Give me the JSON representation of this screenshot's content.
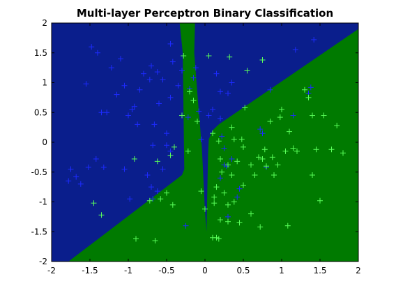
{
  "chart_data": {
    "type": "scatter",
    "title": "Multi-layer Perceptron Binary Classification",
    "xlabel": "",
    "ylabel": "",
    "xlim": [
      -2,
      2
    ],
    "ylim": [
      -2,
      2
    ],
    "xticks": [
      -2,
      -1.5,
      -1,
      -0.5,
      0,
      0.5,
      1,
      1.5,
      2
    ],
    "yticks": [
      -2,
      -1.5,
      -1,
      -0.5,
      0,
      0.5,
      1,
      1.5,
      2
    ],
    "xtick_labels": [
      "-2",
      "-1.5",
      "-1",
      "-0.5",
      "0",
      "0.5",
      "1",
      "1.5",
      "2"
    ],
    "ytick_labels": [
      "-2",
      "-1.5",
      "-1",
      "-0.5",
      "0",
      "0.5",
      "1",
      "1.5",
      "2"
    ],
    "grid": false,
    "regions": [
      {
        "class": "blue",
        "color": "#0a1e8c",
        "boundary": [
          [
            -2,
            2
          ],
          [
            -2,
            -2
          ],
          [
            -1.78,
            -2
          ],
          [
            -0.3,
            -0.55
          ],
          [
            -0.27,
            -0.45
          ],
          [
            -0.29,
            1.5
          ],
          [
            -0.33,
            2
          ]
        ]
      },
      {
        "class": "blue",
        "color": "#0a1e8c",
        "boundary": [
          [
            -0.13,
            2
          ],
          [
            -0.14,
            1.5
          ],
          [
            -0.085,
            0.6
          ],
          [
            -0.04,
            -0.1
          ],
          [
            0,
            -1.15
          ],
          [
            0.02,
            -1.5
          ],
          [
            0.04,
            -0.2
          ],
          [
            0.05,
            0.05
          ],
          [
            0.1,
            0.2
          ],
          [
            0.18,
            0.3
          ],
          [
            2,
            1.9
          ],
          [
            2,
            2
          ]
        ]
      }
    ],
    "background_color": "#007a00",
    "series": [
      {
        "color": "#1d2bff",
        "x": [
          -1.62,
          -1.55,
          -1.42,
          -1.35,
          -1.32,
          -1.28,
          -1.22,
          -1.15,
          -1.1,
          -1.05,
          -0.98,
          -0.92,
          -0.88,
          -0.8,
          -0.72,
          -0.68,
          -0.66,
          -0.6,
          -0.55,
          -0.5,
          -0.45,
          -0.42,
          -0.35,
          -0.3,
          -0.22,
          -0.2,
          -0.15,
          -0.12,
          -0.08,
          -0.05,
          0.05,
          0.1,
          0.15,
          0.2,
          0.22,
          0.3,
          0.35,
          -1.75,
          -1.78,
          -1.68,
          -1.52,
          -1.48,
          -1.4,
          -1.05,
          -1.0,
          -0.95,
          -0.85,
          -0.7,
          -0.62,
          -0.55,
          -0.5,
          -0.45,
          -0.7,
          -0.75,
          -0.68,
          -0.62,
          -0.45,
          -0.25,
          0.25,
          0.2,
          0.28,
          0.3,
          0.45,
          0.72,
          0.75,
          0.8,
          0.85,
          1.15,
          1.35,
          1.38,
          1.42,
          1.18,
          0.42,
          0.35,
          0.25,
          0.2
        ],
        "y": [
          -0.7,
          0.98,
          -0.28,
          0.5,
          -0.42,
          0.5,
          1.25,
          0.8,
          1.4,
          0.95,
          -0.95,
          0.6,
          0.3,
          1.15,
          1.05,
          -0.05,
          0.3,
          0.65,
          1.05,
          0.15,
          0.75,
          1.35,
          0.95,
          1.2,
          0.42,
          0.9,
          1.08,
          1.25,
          0.52,
          0.05,
          0.45,
          0.55,
          1.15,
          0.4,
          0.1,
          0.82,
          1.0,
          -0.45,
          -0.65,
          -0.58,
          -0.42,
          1.6,
          1.5,
          -0.45,
          0.45,
          0.55,
          0.88,
          1.28,
          1.18,
          -0.45,
          -0.05,
          1.65,
          -0.75,
          -0.55,
          -0.95,
          -0.82,
          -0.15,
          -1.4,
          -0.38,
          -0.6,
          -0.4,
          -1.25,
          -0.78,
          0.22,
          0.15,
          -0.42,
          0.88,
          0.45,
          0.82,
          0.92,
          1.72,
          1.55,
          -0.92,
          -0.28,
          -0.1,
          0.85
        ]
      },
      {
        "color": "#5aff5a",
        "x": [
          -1.45,
          -1.35,
          -0.92,
          -0.9,
          -0.72,
          -0.65,
          -0.62,
          -0.58,
          -0.5,
          -0.45,
          -0.42,
          -0.4,
          -0.3,
          -0.28,
          -0.22,
          -0.2,
          -0.15,
          -0.1,
          0.05,
          0.1,
          0.12,
          0.15,
          0.15,
          0.18,
          0.2,
          0.22,
          0.25,
          0.3,
          0.3,
          0.32,
          0.35,
          0.38,
          0.42,
          0.45,
          0.48,
          0.5,
          0.52,
          0.55,
          0.6,
          0.65,
          0.7,
          0.72,
          0.75,
          0.78,
          0.8,
          0.85,
          0.88,
          0.9,
          0.95,
          0.98,
          1.0,
          1.05,
          1.08,
          1.15,
          1.2,
          1.3,
          1.35,
          1.4,
          1.4,
          1.45,
          1.5,
          1.55,
          1.65,
          1.72,
          1.8,
          0.1,
          0.18,
          0.3,
          0.35,
          0.5,
          0.6,
          0.75,
          1.1,
          0.0,
          -0.05,
          0.12,
          0.2,
          0.38
        ],
        "y": [
          -1.02,
          -1.22,
          -0.28,
          -1.62,
          -0.98,
          -1.65,
          -0.32,
          -0.95,
          -0.85,
          -0.22,
          -1.05,
          -0.08,
          0.45,
          1.45,
          -0.15,
          0.85,
          0.7,
          0.35,
          1.45,
          0.15,
          -1.02,
          -0.75,
          -1.6,
          0.02,
          -1.3,
          -0.5,
          -0.85,
          -0.38,
          -1.33,
          1.43,
          0.25,
          -1.0,
          -0.32,
          -1.35,
          0.05,
          -0.08,
          0.58,
          1.2,
          -1.2,
          -0.55,
          -0.25,
          -1.42,
          1.38,
          -0.12,
          -0.4,
          0.35,
          -0.25,
          -0.55,
          -0.38,
          0.42,
          0.55,
          -0.15,
          -1.4,
          -0.1,
          -0.15,
          0.88,
          0.75,
          -0.55,
          0.45,
          -0.12,
          -0.98,
          0.45,
          -0.12,
          0.28,
          -0.18,
          -1.6,
          -1.62,
          -1.05,
          -0.55,
          -0.72,
          -0.38,
          -0.28,
          0.18,
          -1.12,
          -0.82,
          -0.92,
          -0.28,
          0.05
        ]
      }
    ]
  }
}
